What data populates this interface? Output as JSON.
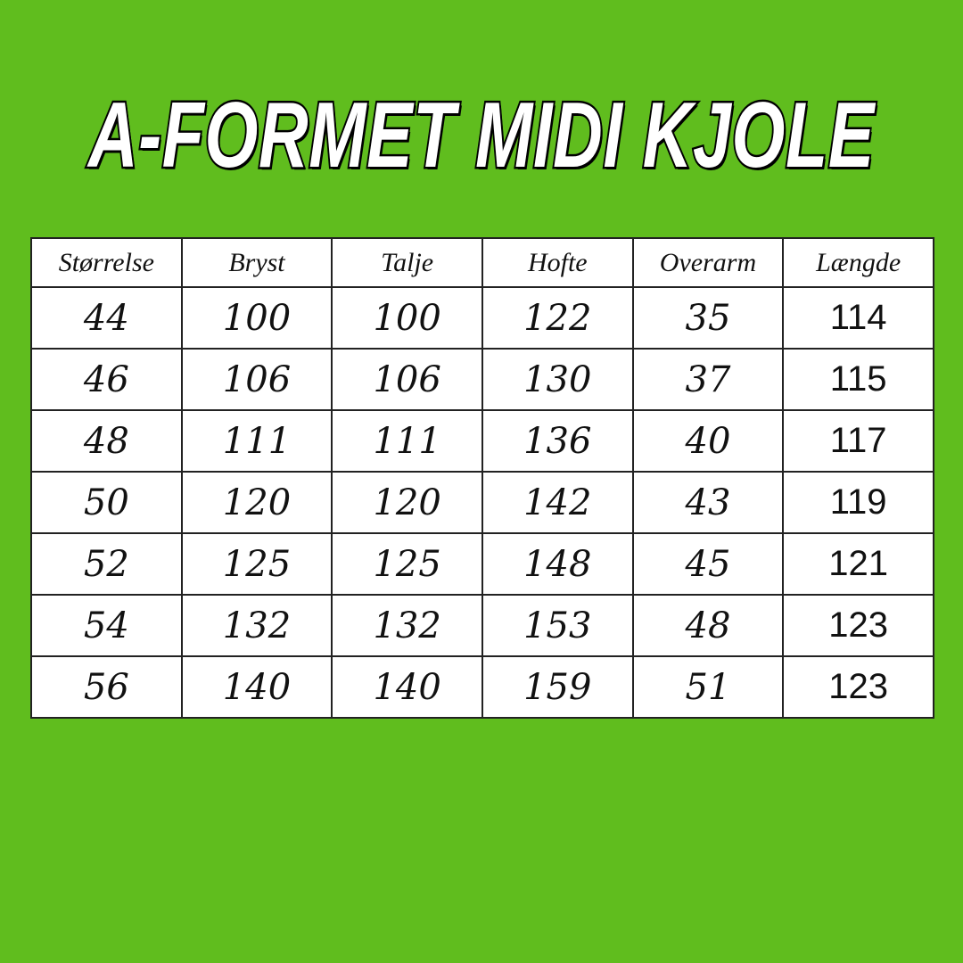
{
  "title": "A-FORMET MIDI KJOLE",
  "colors": {
    "background": "#60bd1e",
    "table": "#ffffff",
    "text": "#111111"
  },
  "table": {
    "headers": [
      "Størrelse",
      "Bryst",
      "Talje",
      "Hofte",
      "Overarm",
      "Længde"
    ],
    "rows": [
      [
        "44",
        "100",
        "100",
        "122",
        "35",
        "114"
      ],
      [
        "46",
        "106",
        "106",
        "130",
        "37",
        "115"
      ],
      [
        "48",
        "111",
        "111",
        "136",
        "40",
        "117"
      ],
      [
        "50",
        "120",
        "120",
        "142",
        "43",
        "119"
      ],
      [
        "52",
        "125",
        "125",
        "148",
        "45",
        "121"
      ],
      [
        "54",
        "132",
        "132",
        "153",
        "48",
        "123"
      ],
      [
        "56",
        "140",
        "140",
        "159",
        "51",
        "123"
      ]
    ]
  }
}
